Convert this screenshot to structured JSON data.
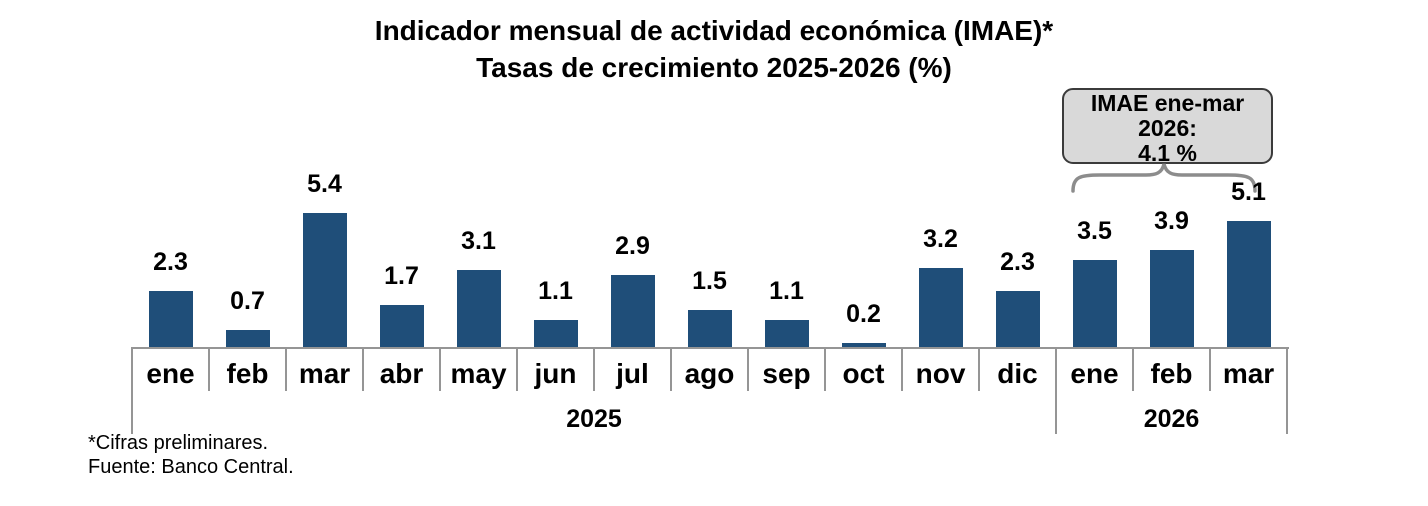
{
  "title": "Indicador mensual de actividad económica (IMAE)*",
  "subtitle": "Tasas de crecimiento 2025-2026 (%)",
  "annotation": {
    "lines": [
      "IMAE ene-mar",
      "2026:",
      "4.1 %"
    ]
  },
  "footnotes": {
    "line1": "*Cifras preliminares.",
    "line2": "Fuente: Banco Central."
  },
  "colors": {
    "bar": "#1F4E79",
    "axis": "#959595",
    "annotation_fill": "#D9D9D9",
    "annotation_border": "#3B3B3B",
    "brace": "#8C8C8C",
    "text": "#000000"
  },
  "chart_data": {
    "type": "bar",
    "title": "Indicador mensual de actividad económica (IMAE)*",
    "subtitle": "Tasas de crecimiento 2025-2026 (%)",
    "categories": [
      "ene",
      "feb",
      "mar",
      "abr",
      "may",
      "jun",
      "jul",
      "ago",
      "sep",
      "oct",
      "nov",
      "dic",
      "ene",
      "feb",
      "mar"
    ],
    "values": [
      2.3,
      0.7,
      5.4,
      1.7,
      3.1,
      1.1,
      2.9,
      1.5,
      1.1,
      0.2,
      3.2,
      2.3,
      3.5,
      3.9,
      5.1
    ],
    "value_labels": [
      "2.3",
      "0.7",
      "5.4",
      "1.7",
      "3.1",
      "1.1",
      "2.9",
      "1.5",
      "1.1",
      "0.2",
      "3.2",
      "2.3",
      "3.5",
      "3.9",
      "5.1"
    ],
    "year_groups": [
      {
        "label": "2025",
        "start": 0,
        "count": 12
      },
      {
        "label": "2026",
        "start": 12,
        "count": 3
      }
    ],
    "annotation_text": "IMAE ene-mar 2026: 4.1 %",
    "xlabel": "",
    "ylabel": "",
    "ylim": [
      0,
      6
    ],
    "grid": false,
    "legend": false,
    "data_labels": true
  }
}
